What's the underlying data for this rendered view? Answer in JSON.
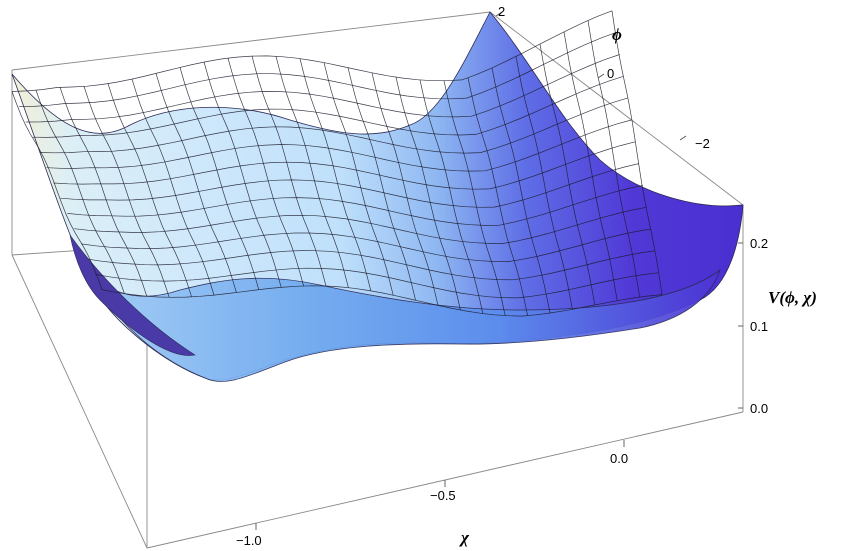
{
  "chart_data": {
    "type": "surface3d",
    "title": "",
    "xlabel": "χ",
    "ylabel": "ϕ",
    "zlabel": "V(ϕ, χ)",
    "xticks": [
      "−1.0",
      "−0.5",
      "0.0"
    ],
    "yticks": [
      "−2",
      "0",
      "2"
    ],
    "zticks": [
      "0.0",
      "0.1",
      "0.2"
    ],
    "xlim": [
      -1.3,
      0.3
    ],
    "ylim": [
      -3.2,
      2.2
    ],
    "zlim": [
      0.0,
      0.26
    ],
    "grid": true,
    "legend": "none",
    "colors": {
      "low": "#eef7ff",
      "mid": "#5b9ff0",
      "high": "#4e33d4",
      "edge": "#3a2a9a",
      "tan": "#f2ecd2"
    }
  }
}
